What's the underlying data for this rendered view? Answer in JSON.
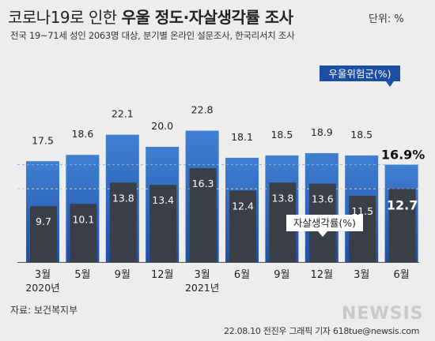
{
  "header": {
    "title_light": "코로나19로 인한",
    "title_bold": "우울 정도·자살생각률 조사",
    "unit": "단위: %",
    "subtitle": "전국 19~71세 성인 2063명 대상, 분기별 온라인 설문조사, 한국리서치 조사"
  },
  "footer": {
    "source": "자료: 보건복지부",
    "credit": "22.08.10 전진우 그래픽 기자 618tue@newsis.com",
    "watermark": "NEWSIS"
  },
  "colors": {
    "depression_bar": "#1e50a8",
    "depression_bar_top": "#3f7fd2",
    "suicide_bar": "#3a3f47",
    "background": "#ededed"
  },
  "chart_data": {
    "type": "bar",
    "categories": [
      "3월",
      "5월",
      "9월",
      "12월",
      "3월",
      "6월",
      "9월",
      "12월",
      "3월",
      "6월"
    ],
    "year_labels": [
      "2020년",
      "",
      "",
      "",
      "2021년",
      "",
      "",
      "",
      "",
      ""
    ],
    "series": [
      {
        "name": "우울위험군(%)",
        "values": [
          17.5,
          18.6,
          22.1,
          20.0,
          22.8,
          18.1,
          18.5,
          18.9,
          18.5,
          16.9
        ]
      },
      {
        "name": "자살생각률(%)",
        "values": [
          9.7,
          10.1,
          13.8,
          13.4,
          16.3,
          12.4,
          13.8,
          13.6,
          11.5,
          12.7
        ]
      }
    ],
    "ylim": [
      0,
      25
    ],
    "legend": [
      "우울위험군(%)",
      "자살생각률(%)"
    ],
    "highlight_index": 9
  }
}
